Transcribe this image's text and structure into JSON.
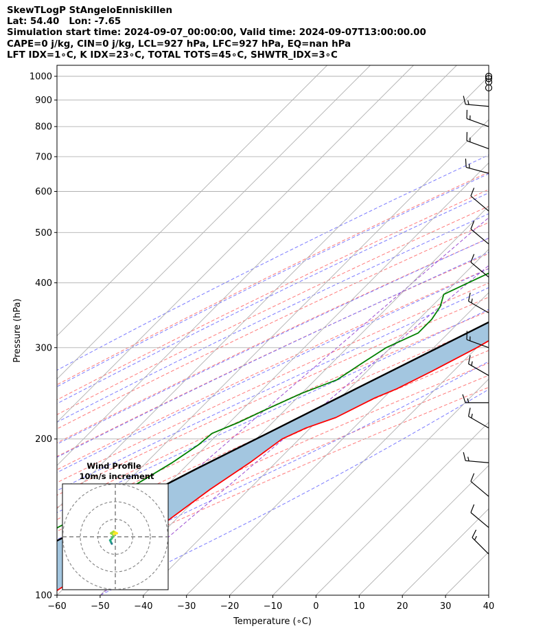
{
  "header": {
    "line1": "SkewTLogP StAngeloEnniskillen",
    "line2": "Lat: 54.40   Lon: -7.65",
    "line3": "Simulation start time: 2024-09-07_00:00:00, Valid time: 2024-09-07T13:00:00.00",
    "line4": "CAPE=0 j/kg, CIN=0 j/kg, LCL=927 hPa, LFC=927 hPa, EQ=nan hPa",
    "line5": "LFT IDX=1∘C, K IDX=23∘C, TOTAL TOTS=45∘C, SHWTR_IDX=3∘C"
  },
  "chart_data": {
    "type": "line",
    "subtype": "skew-T log-P",
    "xlabel": "Temperature (∘C)",
    "ylabel": "Pressure (hPa)",
    "xlim": [
      -60,
      40
    ],
    "ylim": [
      1050,
      100
    ],
    "y_scale": "log",
    "x_ticks": [
      "−60",
      "−50",
      "−40",
      "−30",
      "−20",
      "−10",
      "0",
      "10",
      "20",
      "30",
      "40"
    ],
    "y_ticks": [
      "100",
      "200",
      "300",
      "400",
      "500",
      "600",
      "700",
      "800",
      "900",
      "1000"
    ],
    "x_tick_values": [
      -60,
      -50,
      -40,
      -30,
      -20,
      -10,
      0,
      10,
      20,
      30,
      40
    ],
    "y_tick_values": [
      100,
      200,
      300,
      400,
      500,
      600,
      700,
      800,
      900,
      1000
    ],
    "grid": true,
    "series": [
      {
        "role": "temperature",
        "color": "#ff0000",
        "points": [
          [
            1000,
            22
          ],
          [
            975,
            19.5
          ],
          [
            950,
            18.2
          ],
          [
            925,
            17.8
          ],
          [
            900,
            18.8
          ],
          [
            850,
            19.8
          ],
          [
            800,
            18.0
          ],
          [
            750,
            15.5
          ],
          [
            700,
            13.5
          ],
          [
            650,
            10.5
          ],
          [
            600,
            7.0
          ],
          [
            550,
            3.6
          ],
          [
            500,
            0.0
          ],
          [
            450,
            -4.0
          ],
          [
            400,
            -8.3
          ],
          [
            360,
            -12.5
          ],
          [
            340,
            -15.3
          ],
          [
            300,
            -20.0
          ],
          [
            270,
            -25.0
          ],
          [
            250,
            -29.0
          ],
          [
            240,
            -32.0
          ],
          [
            220,
            -36.5
          ],
          [
            210,
            -41.0
          ],
          [
            200,
            -44.0
          ],
          [
            180,
            -46.0
          ],
          [
            160,
            -49.0
          ],
          [
            140,
            -51.5
          ],
          [
            125,
            -54.5
          ],
          [
            115,
            -58.5
          ],
          [
            106,
            -60.0
          ],
          [
            100,
            -61.7
          ]
        ]
      },
      {
        "role": "dewpoint",
        "color": "#008000",
        "points": [
          [
            1000,
            16.5
          ],
          [
            970,
            16.5
          ],
          [
            940,
            16.0
          ],
          [
            900,
            14.0
          ],
          [
            860,
            11.0
          ],
          [
            820,
            9.0
          ],
          [
            790,
            9.0
          ],
          [
            700,
            2.0
          ],
          [
            650,
            -2.0
          ],
          [
            600,
            -7.0
          ],
          [
            550,
            -13.0
          ],
          [
            520,
            -20.0
          ],
          [
            480,
            -26.0
          ],
          [
            450,
            -30.0
          ],
          [
            400,
            -37.0
          ],
          [
            380,
            -40.0
          ],
          [
            360,
            -38.0
          ],
          [
            340,
            -37.0
          ],
          [
            320,
            -37.0
          ],
          [
            300,
            -41.0
          ],
          [
            280,
            -43.0
          ],
          [
            260,
            -45.0
          ],
          [
            245,
            -50.0
          ],
          [
            230,
            -54.0
          ],
          [
            215,
            -58.0
          ],
          [
            205,
            -61.5
          ],
          [
            195,
            -62.0
          ],
          [
            180,
            -64.0
          ],
          [
            165,
            -67.0
          ],
          [
            150,
            -70.5
          ],
          [
            135,
            -75.5
          ],
          [
            125,
            -76.0
          ],
          [
            115,
            -77.0
          ],
          [
            100,
            -80.0
          ]
        ]
      },
      {
        "role": "parcel",
        "color": "#000000",
        "points": [
          [
            1000,
            22
          ],
          [
            970,
            19.2
          ],
          [
            940,
            17.4
          ],
          [
            927,
            16.9
          ],
          [
            900,
            16.0
          ],
          [
            850,
            14.3
          ],
          [
            800,
            12.5
          ],
          [
            750,
            10.4
          ],
          [
            700,
            8.0
          ],
          [
            650,
            5.5
          ],
          [
            600,
            2.6
          ],
          [
            550,
            -0.7
          ],
          [
            500,
            -4.5
          ],
          [
            450,
            -9.0
          ],
          [
            400,
            -14.5
          ],
          [
            350,
            -21.0
          ],
          [
            300,
            -29.0
          ],
          [
            250,
            -38.5
          ],
          [
            200,
            -50.0
          ],
          [
            175,
            -57.0
          ],
          [
            150,
            -64.5
          ],
          [
            125,
            -73.5
          ],
          [
            100,
            -84.5
          ]
        ]
      }
    ],
    "fill": {
      "between": [
        "parcel",
        "temperature"
      ],
      "color": "#a3c6e0"
    },
    "reference_lines": {
      "isotherms": {
        "color": "#b0b0b0",
        "values": [
          -120,
          -110,
          -100,
          -90,
          -80,
          -70,
          -60,
          -50,
          -40,
          -30,
          -20,
          -10,
          0,
          10,
          20,
          30,
          40
        ]
      },
      "dry_adiabats": {
        "color": "#ff6a6a",
        "theta_C": [
          -30,
          -20,
          -10,
          0,
          10,
          20,
          30,
          40,
          50,
          60,
          70,
          80,
          90,
          100,
          110,
          120
        ]
      },
      "moist_adiabats": {
        "color": "#6b6bff",
        "start_T_C": [
          -40,
          -30,
          -20,
          -10,
          0,
          5,
          10,
          15,
          20,
          25,
          30,
          35
        ]
      },
      "mixing_ratio": {
        "color": "#9b4bd0",
        "values_g_kg": [
          0.1,
          0.4
        ]
      }
    },
    "wind_barbs": [
      {
        "p": 1000,
        "speed_kt": 0
      },
      {
        "p": 990,
        "speed_kt": 0
      },
      {
        "p": 975,
        "speed_kt": 0
      },
      {
        "p": 950,
        "speed_kt": 0
      },
      {
        "p": 875,
        "dir": 275,
        "speed_kt": 15
      },
      {
        "p": 800,
        "dir": 290,
        "speed_kt": 15
      },
      {
        "p": 725,
        "dir": 290,
        "speed_kt": 15
      },
      {
        "p": 650,
        "dir": 285,
        "speed_kt": 15
      },
      {
        "p": 550,
        "dir": 310,
        "speed_kt": 10
      },
      {
        "p": 475,
        "dir": 310,
        "speed_kt": 10
      },
      {
        "p": 410,
        "dir": 310,
        "speed_kt": 10
      },
      {
        "p": 350,
        "dir": 300,
        "speed_kt": 15
      },
      {
        "p": 300,
        "dir": 290,
        "speed_kt": 15
      },
      {
        "p": 265,
        "dir": 300,
        "speed_kt": 15
      },
      {
        "p": 235,
        "dir": 270,
        "speed_kt": 15
      },
      {
        "p": 210,
        "dir": 300,
        "speed_kt": 15
      },
      {
        "p": 180,
        "dir": 275,
        "speed_kt": 15
      },
      {
        "p": 155,
        "dir": 310,
        "speed_kt": 10
      },
      {
        "p": 135,
        "dir": 310,
        "speed_kt": 10
      },
      {
        "p": 120,
        "dir": 315,
        "speed_kt": 15
      }
    ],
    "inset": {
      "title": "Wind Profile",
      "subtitle": "10m/s increment",
      "rings": 3,
      "hodograph_uv": [
        [
          -2,
          -4
        ],
        [
          -2.5,
          -3
        ],
        [
          -3,
          -2
        ],
        [
          -2,
          -1
        ],
        [
          -1,
          0.5
        ],
        [
          -1.5,
          1.5
        ],
        [
          -2.5,
          2.0
        ],
        [
          -1,
          3
        ],
        [
          0,
          2.5
        ],
        [
          1,
          2
        ],
        [
          -1,
          1.5
        ]
      ]
    }
  }
}
